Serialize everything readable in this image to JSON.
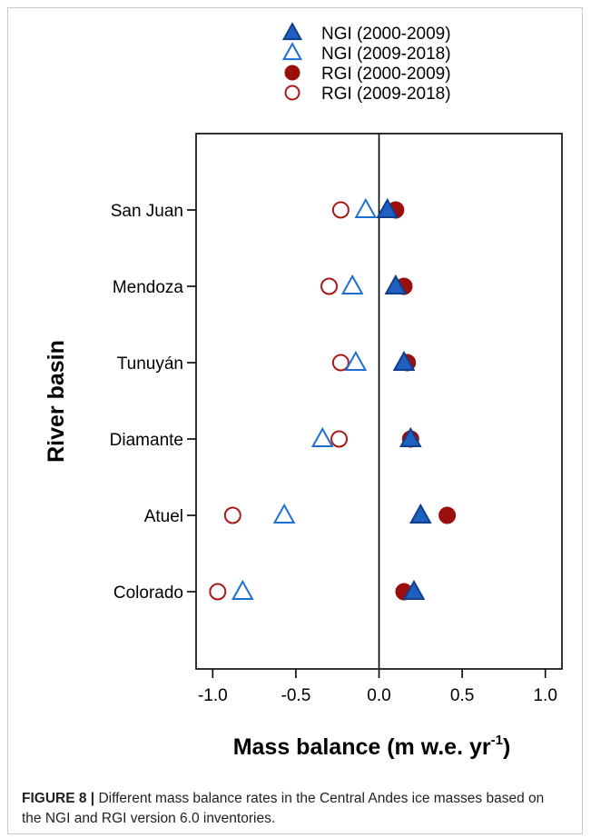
{
  "chart_data": {
    "type": "scatter",
    "categories": [
      "San Juan",
      "Mendoza",
      "Tunuyán",
      "Diamante",
      "Atuel",
      "Colorado"
    ],
    "series": [
      {
        "name": "NGI (2000-2009)",
        "marker": "triangle",
        "filled": true,
        "color": "#1f5fbf",
        "values": [
          0.05,
          0.1,
          0.15,
          0.19,
          0.25,
          0.21
        ]
      },
      {
        "name": "NGI (2009-2018)",
        "marker": "triangle",
        "filled": false,
        "color": "#1f6fd0",
        "values": [
          -0.08,
          -0.16,
          -0.14,
          -0.34,
          -0.57,
          -0.82
        ]
      },
      {
        "name": "RGI (2000-2009)",
        "marker": "circle",
        "filled": true,
        "color": "#9b0e0e",
        "values": [
          0.1,
          0.15,
          0.17,
          0.19,
          0.41,
          0.15
        ]
      },
      {
        "name": "RGI (2009-2018)",
        "marker": "circle",
        "filled": false,
        "color": "#a81a1a",
        "values": [
          -0.23,
          -0.3,
          -0.23,
          -0.24,
          -0.88,
          -0.97
        ]
      }
    ],
    "xlabel": "Mass balance (m w.e. yr",
    "xlabel_superscript": "-1",
    "xlabel_suffix": ")",
    "ylabel": "River basin",
    "xlim": [
      -1.1,
      1.1
    ],
    "xticks": [
      -1.0,
      -0.5,
      0.0,
      0.5,
      1.0
    ],
    "xtick_labels": [
      "-1.0",
      "-0.5",
      "0.0",
      "0.5",
      "1.0"
    ],
    "reference_line_x": 0,
    "grid": false,
    "legend_position": "top"
  },
  "caption": {
    "label": "FIGURE 8 |",
    "text": " Different mass balance rates in the Central Andes ice masses based on the NGI and RGI version 6.0 inventories."
  }
}
